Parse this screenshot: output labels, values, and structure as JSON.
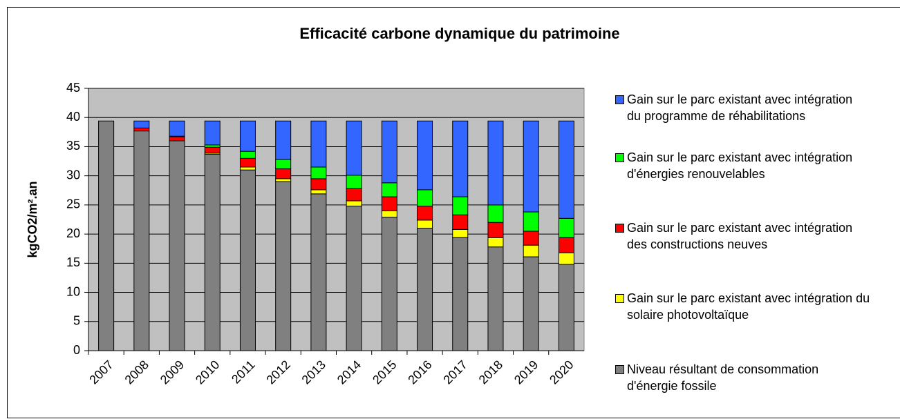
{
  "chart_data": {
    "type": "stacked-bar",
    "title": "Efficacité carbone dynamique du patrimoine",
    "y_label": "kgCO2/m².an",
    "categories": [
      "2007",
      "2008",
      "2009",
      "2010",
      "2011",
      "2012",
      "2013",
      "2014",
      "2015",
      "2016",
      "2017",
      "2018",
      "2019",
      "2020"
    ],
    "series": [
      {
        "name": "Niveau résultant de consommation d'énergie fossile",
        "color": "#808080",
        "values": [
          39.4,
          37.7,
          36.0,
          33.7,
          31.0,
          29.0,
          26.9,
          24.8,
          22.9,
          21.0,
          19.4,
          17.8,
          16.1,
          14.8
        ]
      },
      {
        "name": "Gain sur le parc existant avec intégration du solaire photovoltaïque",
        "color": "#ffff00",
        "values": [
          0,
          0,
          0,
          0.2,
          0.5,
          0.5,
          0.7,
          0.9,
          1.1,
          1.4,
          1.4,
          1.6,
          2.0,
          2.0
        ]
      },
      {
        "name": "Gain sur le parc existant avec intégration des constructions neuves",
        "color": "#ff0000",
        "values": [
          0,
          0.5,
          0.7,
          1.0,
          1.5,
          1.7,
          1.9,
          2.1,
          2.4,
          2.4,
          2.5,
          2.6,
          2.4,
          2.6
        ]
      },
      {
        "name": "Gain sur le parc existant avec intégration d'énergies renouvelables",
        "color": "#00ff00",
        "values": [
          0,
          0,
          0.1,
          0.4,
          1.2,
          1.6,
          2.0,
          2.3,
          2.4,
          2.8,
          3.1,
          3.0,
          3.3,
          3.3
        ]
      },
      {
        "name": "Gain sur le parc existant avec intégration du programme de réhabilitations",
        "color": "#3366ff",
        "values": [
          0,
          1.2,
          2.6,
          4.1,
          5.2,
          6.6,
          7.9,
          9.3,
          10.6,
          11.8,
          13.0,
          14.4,
          15.6,
          16.7
        ]
      }
    ],
    "ylim": [
      0,
      45
    ],
    "yticks": [
      0,
      5,
      10,
      15,
      20,
      25,
      30,
      35,
      40,
      45
    ],
    "grid": true,
    "legend": "right"
  }
}
